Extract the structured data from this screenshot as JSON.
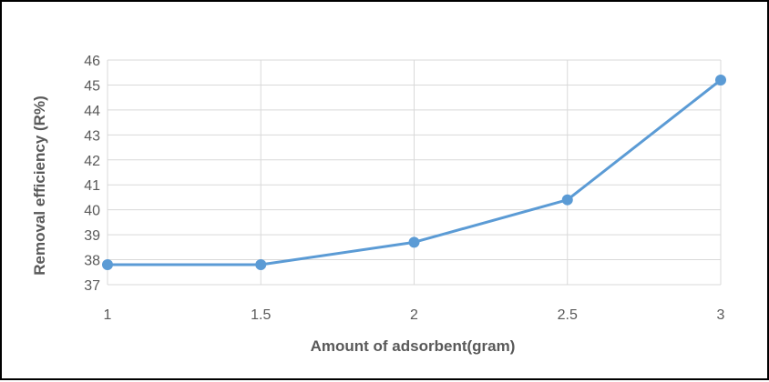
{
  "chart_data": {
    "type": "line",
    "title": "",
    "xlabel": "Amount of adsorbent(gram)",
    "ylabel": "Removal efficiency  (R%)",
    "x": [
      1,
      1.5,
      2,
      2.5,
      3
    ],
    "series": [
      {
        "values": [
          37.8,
          37.8,
          38.7,
          40.4,
          45.2
        ]
      }
    ],
    "xticks": [
      "1",
      "1.5",
      "2",
      "2.5",
      "3"
    ],
    "yticks": [
      "37",
      "38",
      "39",
      "40",
      "41",
      "42",
      "43",
      "44",
      "45",
      "46"
    ],
    "xlim": [
      1,
      3
    ],
    "ylim": [
      37,
      46
    ],
    "grid": true,
    "legend": "none",
    "colors": {
      "series": "#5b9bd5",
      "grid": "#d9d9d9",
      "text": "#595959",
      "border": "#000000"
    }
  }
}
